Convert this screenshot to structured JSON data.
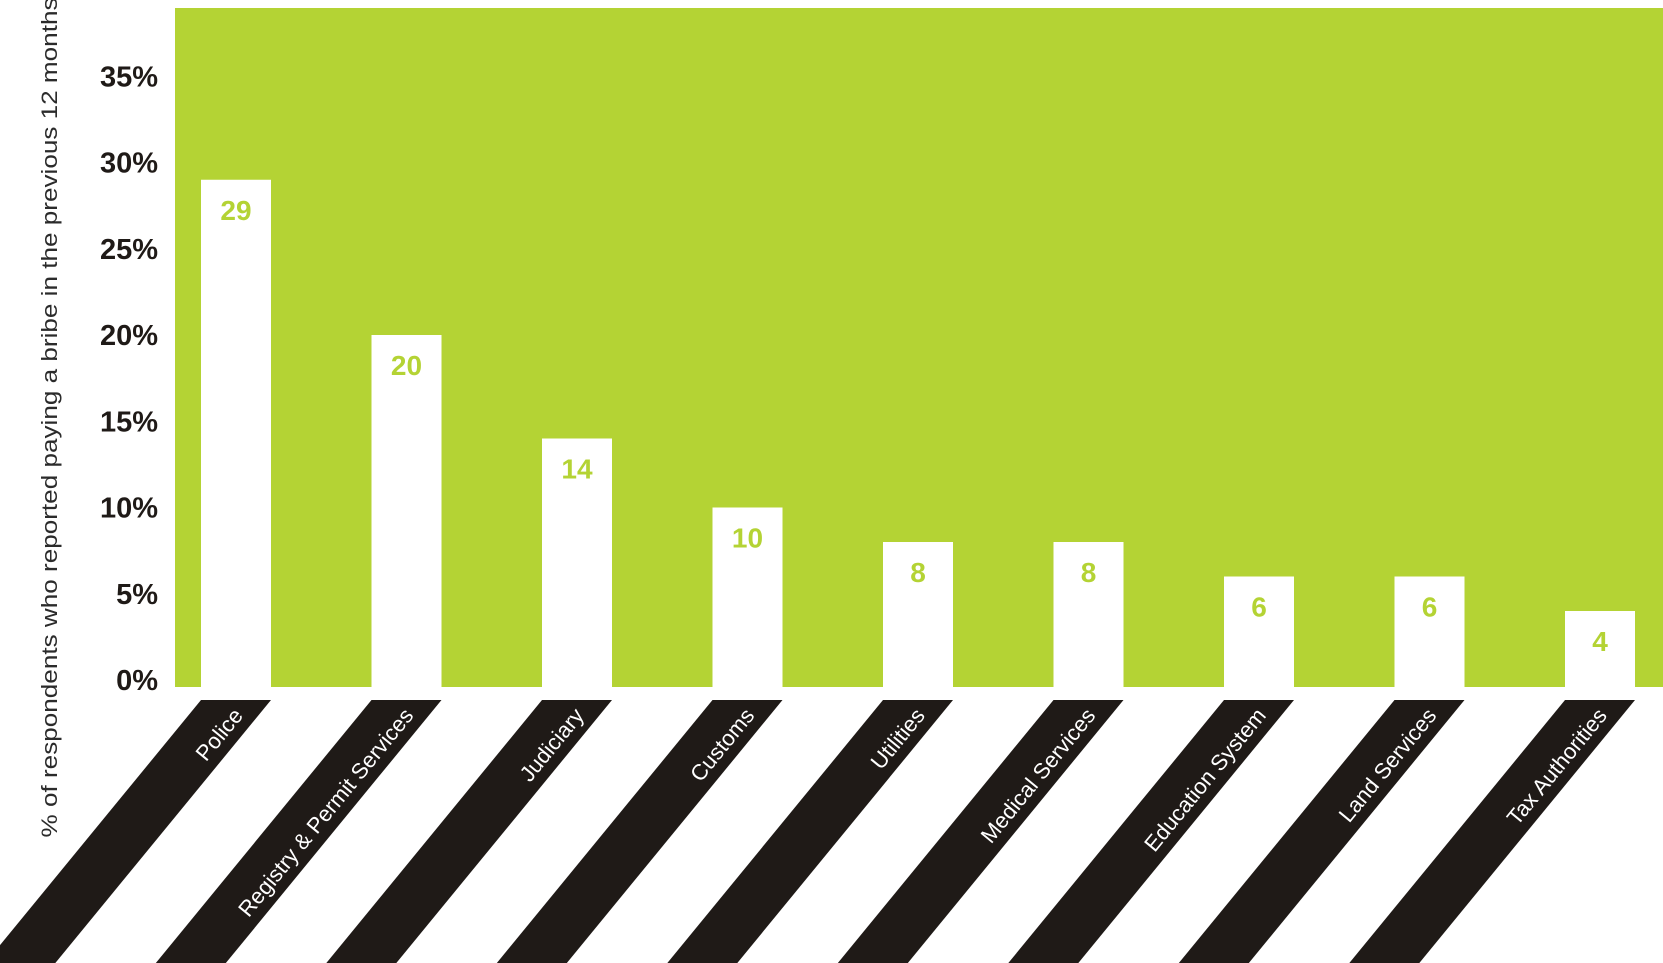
{
  "chart_data": {
    "type": "bar",
    "ylabel": "% of respondents who reported paying a bribe in the previous 12 months",
    "categories": [
      "Police",
      "Registry & Permit Services",
      "Judiciary",
      "Customs",
      "Utilities",
      "Medical Services",
      "Education System",
      "Land Services",
      "Tax Authorities"
    ],
    "values": [
      29,
      20,
      14,
      10,
      8,
      8,
      6,
      6,
      4
    ],
    "data_labels": [
      "29",
      "20",
      "14",
      "10",
      "8",
      "8",
      "6",
      "6",
      "4"
    ],
    "yticks": [
      0,
      5,
      10,
      15,
      20,
      25,
      30,
      35
    ],
    "ytick_labels": [
      "0%",
      "5%",
      "10%",
      "15%",
      "20%",
      "25%",
      "30%",
      "35%"
    ],
    "ylim": [
      0,
      39
    ],
    "grid": false,
    "legend": "none",
    "colors": {
      "plot_background": "#b4d334",
      "bar": "#ffffff",
      "value_label": "#b4d334",
      "category_band": "#1f1a17",
      "category_text": "#ffffff",
      "axis_text": "#1f1a17"
    }
  }
}
